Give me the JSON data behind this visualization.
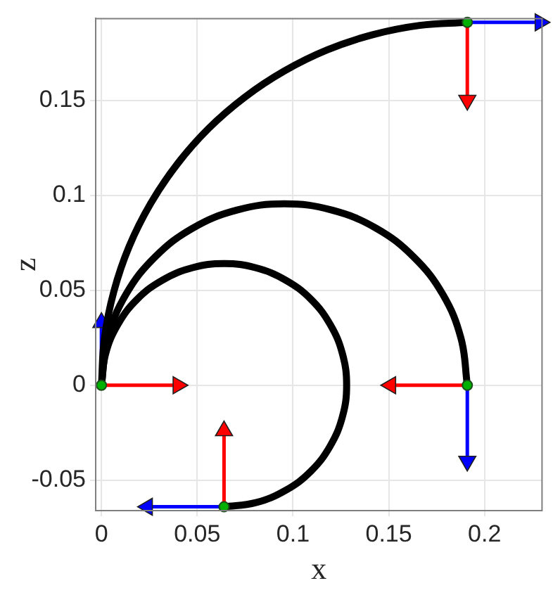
{
  "chart_data": {
    "type": "line",
    "xlabel": "x",
    "ylabel": "z",
    "xlim": [
      -0.003,
      0.23
    ],
    "ylim": [
      -0.066,
      0.193
    ],
    "xticks": [
      0,
      0.05,
      0.1,
      0.15,
      0.2
    ],
    "yticks": [
      -0.05,
      0,
      0.05,
      0.1,
      0.15
    ],
    "grid": true,
    "legend": false,
    "series": [
      {
        "color": "#ff0000",
        "marker": "triangle",
        "x": [
          0,
          0.04
        ],
        "values": [
          0,
          0
        ]
      },
      {
        "color": "#0000ff",
        "marker": "triangle",
        "x": [
          0,
          0
        ],
        "values": [
          0,
          0.033
        ]
      },
      {
        "color": "#ff0000",
        "marker": "triangle",
        "x": [
          0.191,
          0.191
        ],
        "values": [
          0.191,
          0.15
        ]
      },
      {
        "type": "line",
        "color": "#0000ff",
        "marker": "triangle",
        "x": [
          0.191,
          0.229
        ],
        "values": [
          0.191,
          0.191
        ]
      },
      {
        "type": "line",
        "color": "#ff0000",
        "marker": "triangle",
        "x": [
          0.191,
          0.151
        ],
        "values": [
          0,
          0
        ]
      },
      {
        "type": "line",
        "color": "#0000ff",
        "marker": "triangle",
        "x": [
          0.191,
          0.191
        ],
        "values": [
          0,
          -0.04
        ]
      },
      {
        "type": "line",
        "color": "#ff0000",
        "marker": "triangle",
        "x": [
          0.064,
          0.064
        ],
        "values": [
          -0.064,
          -0.024
        ]
      },
      {
        "type": "line",
        "color": "#0000ff",
        "marker": "triangle",
        "x": [
          0.064,
          0.024
        ],
        "values": [
          -0.064,
          -0.064
        ]
      },
      {
        "type": "line",
        "color": "#000000",
        "x": [
          0,
          0.0016,
          0.0065,
          0.0145,
          0.0256,
          0.0395,
          0.0559,
          0.0747,
          0.0955,
          0.1179,
          0.1416,
          0.1661,
          0.191
        ],
        "values": [
          0,
          0.0249,
          0.0494,
          0.0731,
          0.0955,
          0.1163,
          0.1351,
          0.1515,
          0.1654,
          0.1765,
          0.1845,
          0.1894,
          0.191
        ]
      },
      {
        "type": "line",
        "color": "#000000",
        "x": [
          0,
          0.0033,
          0.0128,
          0.028,
          0.0477,
          0.0708,
          0.0955,
          0.1202,
          0.1433,
          0.163,
          0.1782,
          0.1877,
          0.191
        ],
        "values": [
          0,
          0.0247,
          0.0478,
          0.0675,
          0.0827,
          0.0922,
          0.0955,
          0.0922,
          0.0827,
          0.0675,
          0.0478,
          0.0247,
          0
        ]
      },
      {
        "type": "line",
        "color": "#000000",
        "x": [
          0,
          0.0022,
          0.0086,
          0.0187,
          0.032,
          0.0474,
          0.064,
          0.0806,
          0.096,
          0.1093,
          0.1194,
          0.1258,
          0.128,
          0.1258,
          0.1194,
          0.1093,
          0.096,
          0.0806,
          0.064
        ],
        "values": [
          0,
          0.0166,
          0.032,
          0.0453,
          0.0554,
          0.0618,
          0.064,
          0.0618,
          0.0554,
          0.0453,
          0.032,
          0.0166,
          0,
          -0.0166,
          -0.032,
          -0.0453,
          -0.0554,
          -0.0618,
          -0.064
        ]
      },
      {
        "type": "scatter",
        "color": "#00b000",
        "marker": "circle",
        "x": [
          0,
          0.191,
          0.191,
          0.064
        ],
        "values": [
          0,
          0.191,
          0,
          -0.064
        ]
      }
    ]
  }
}
